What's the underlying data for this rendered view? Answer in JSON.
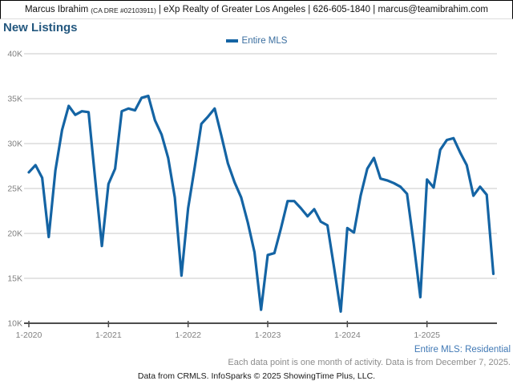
{
  "header": {
    "agent_name": "Marcus Ibrahim",
    "license": "(CA DRE #02103911)",
    "suffix": "| eXp Realty of Greater Los Angeles | 626-605-1840 | marcus@teamibrahim.com"
  },
  "footer": {
    "series_note": "Entire MLS: Residential",
    "data_note": "Each data point is one month of activity. Data is from December 7, 2025.",
    "source_note": "Data from CRMLS. InfoSparks © 2025 ShowingTime Plus, LLC."
  },
  "colors": {
    "line_blue": "#1464A4",
    "legend_text": "#3A6E9F",
    "title_blue": "#24587F",
    "series_note_blue": "#4179B5",
    "axis_text_gray": "#808080",
    "note_gray": "#8C8C8C",
    "gridline_gray": "#C9C9C9",
    "axis_line_gray": "#4D4D4D"
  },
  "chart_data": {
    "type": "line",
    "title": "New Listings",
    "legend": {
      "label": "Entire MLS",
      "color": "#1464A4"
    },
    "y_unit": "K",
    "ylim": [
      10000,
      40000
    ],
    "grid": true,
    "x_start_month": "1-2020",
    "x_end_month": "11-2025",
    "y_ticks": [
      {
        "label": "40K",
        "value": 40
      },
      {
        "label": "35K",
        "value": 35
      },
      {
        "label": "30K",
        "value": 30
      },
      {
        "label": "25K",
        "value": 25
      },
      {
        "label": "20K",
        "value": 20
      },
      {
        "label": "15K",
        "value": 15
      },
      {
        "label": "10K",
        "value": 10
      }
    ],
    "x_ticks": [
      {
        "label": "1-2020",
        "month_index": 0
      },
      {
        "label": "1-2021",
        "month_index": 12
      },
      {
        "label": "1-2022",
        "month_index": 24
      },
      {
        "label": "1-2023",
        "month_index": 36
      },
      {
        "label": "1-2024",
        "month_index": 48
      },
      {
        "label": "1-2025",
        "month_index": 60
      }
    ],
    "series": [
      {
        "name": "Entire MLS",
        "values_in_thousands": [
          26.8,
          27.6,
          26.2,
          19.6,
          27.0,
          31.5,
          34.2,
          33.2,
          33.6,
          33.5,
          26.0,
          18.6,
          25.5,
          27.2,
          33.6,
          33.9,
          33.7,
          35.1,
          35.3,
          32.6,
          31.0,
          28.4,
          24.0,
          15.3,
          22.8,
          27.4,
          32.2,
          33.0,
          33.9,
          30.9,
          27.8,
          25.7,
          24.0,
          21.2,
          17.9,
          11.5,
          17.6,
          17.8,
          20.6,
          23.6,
          23.6,
          22.8,
          21.9,
          22.7,
          21.3,
          20.9,
          16.2,
          11.3,
          20.6,
          20.1,
          24.2,
          27.2,
          28.4,
          26.1,
          25.9,
          25.6,
          25.2,
          24.4,
          18.9,
          12.9,
          26.0,
          25.1,
          29.3,
          30.4,
          30.6,
          29.0,
          27.6,
          24.2,
          25.2,
          24.3,
          15.5
        ]
      }
    ]
  }
}
